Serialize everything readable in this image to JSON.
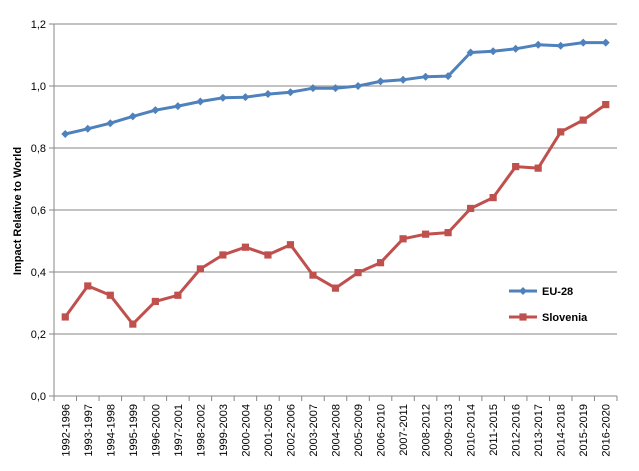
{
  "chart_data": {
    "type": "line",
    "title": "",
    "xlabel": "",
    "ylabel": "Impact Relative to World",
    "ylim": [
      0,
      1.2
    ],
    "ytick_step": 0.2,
    "decimal_separator": ",",
    "grid": "horizontal",
    "legend_position": "right",
    "categories": [
      "1992-1996",
      "1993-1997",
      "1994-1998",
      "1995-1999",
      "1996-2000",
      "1997-2001",
      "1998-2002",
      "1999-2003",
      "2000-2004",
      "2001-2005",
      "2002-2006",
      "2003-2007",
      "2004-2008",
      "2005-2009",
      "2006-2010",
      "2007-2011",
      "2008-2012",
      "2009-2013",
      "2010-2014",
      "2011-2015",
      "2012-2016",
      "2013-2017",
      "2014-2018",
      "2015-2019",
      "2016-2020"
    ],
    "series": [
      {
        "name": "EU-28",
        "color": "#4F81BD",
        "marker": "diamond",
        "values": [
          0.845,
          0.862,
          0.88,
          0.902,
          0.922,
          0.935,
          0.95,
          0.962,
          0.964,
          0.974,
          0.98,
          0.993,
          0.993,
          1.0,
          1.015,
          1.02,
          1.03,
          1.032,
          1.108,
          1.112,
          1.12,
          1.133,
          1.13,
          1.14,
          1.14
        ]
      },
      {
        "name": "Slovenia",
        "color": "#C0504D",
        "marker": "square",
        "values": [
          0.255,
          0.355,
          0.325,
          0.232,
          0.305,
          0.325,
          0.41,
          0.455,
          0.48,
          0.455,
          0.488,
          0.39,
          0.348,
          0.398,
          0.43,
          0.507,
          0.522,
          0.527,
          0.605,
          0.64,
          0.74,
          0.735,
          0.852,
          0.89,
          0.94
        ]
      }
    ]
  }
}
